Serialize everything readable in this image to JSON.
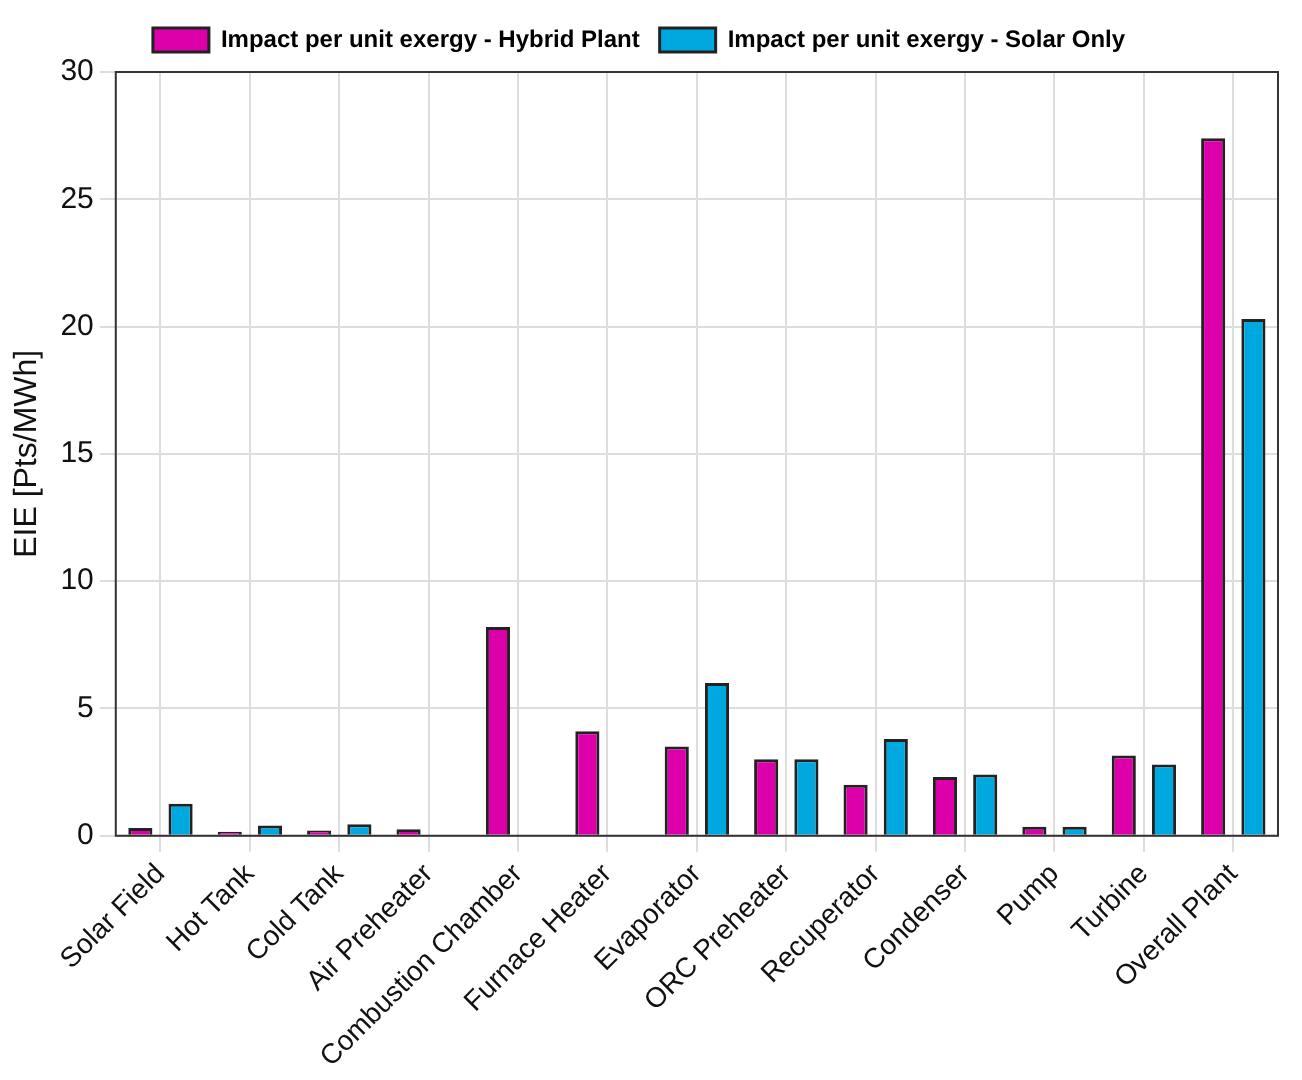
{
  "chart_data": {
    "type": "bar",
    "ylabel": "EIE [Pts/MWh]",
    "categories": [
      "Solar Field",
      "Hot Tank",
      "Cold Tank",
      "Air Preheater",
      "Combustion Chamber",
      "Furnace Heater",
      "Evaporator",
      "ORC Preheater",
      "Recuperator",
      "Condenser",
      "Pump",
      "Turbine",
      "Overall Plant"
    ],
    "series": [
      {
        "name": "Impact per unit exergy - Hybrid Plant",
        "color": "#dd00aa",
        "values": [
          0.3,
          0.15,
          0.2,
          0.25,
          8.2,
          4.1,
          3.5,
          3.0,
          2.0,
          2.3,
          0.35,
          3.15,
          27.4
        ]
      },
      {
        "name": "Impact per unit exergy - Solar Only",
        "color": "#00a8e0",
        "values": [
          1.25,
          0.4,
          0.45,
          0,
          0,
          0,
          6.0,
          3.0,
          3.8,
          2.4,
          0.35,
          2.8,
          20.3
        ]
      }
    ],
    "ylim": [
      0,
      30
    ],
    "yticks": [
      0,
      5,
      10,
      15,
      20,
      25,
      30
    ],
    "grid": true,
    "legend": "top"
  }
}
